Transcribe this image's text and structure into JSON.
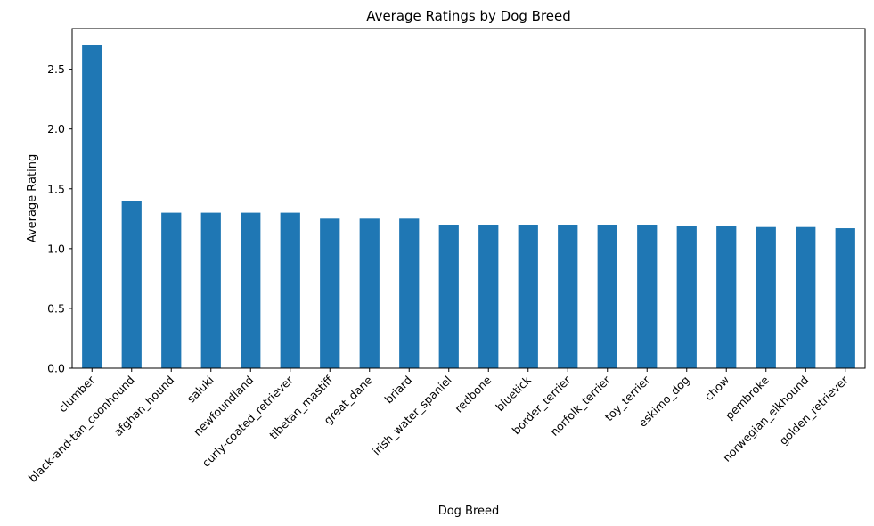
{
  "chart_data": {
    "type": "bar",
    "title": "Average Ratings by Dog Breed",
    "xlabel": "Dog Breed",
    "ylabel": "Average Rating",
    "categories": [
      "clumber",
      "black-and-tan_coonhound",
      "afghan_hound",
      "saluki",
      "newfoundland",
      "curly-coated_retriever",
      "tibetan_mastiff",
      "great_dane",
      "briard",
      "irish_water_spaniel",
      "redbone",
      "bluetick",
      "border_terrier",
      "norfolk_terrier",
      "toy_terrier",
      "eskimo_dog",
      "chow",
      "pembroke",
      "norwegian_elkhound",
      "golden_retriever"
    ],
    "values": [
      2.7,
      1.4,
      1.3,
      1.3,
      1.3,
      1.3,
      1.25,
      1.25,
      1.25,
      1.2,
      1.2,
      1.2,
      1.2,
      1.2,
      1.2,
      1.19,
      1.19,
      1.18,
      1.18,
      1.17
    ],
    "ylim": [
      0,
      2.84
    ],
    "yticks": [
      "0.0",
      "0.5",
      "1.0",
      "1.5",
      "2.0",
      "2.5"
    ],
    "grid": false,
    "legend": "none",
    "bar_color": "#1f77b4"
  }
}
